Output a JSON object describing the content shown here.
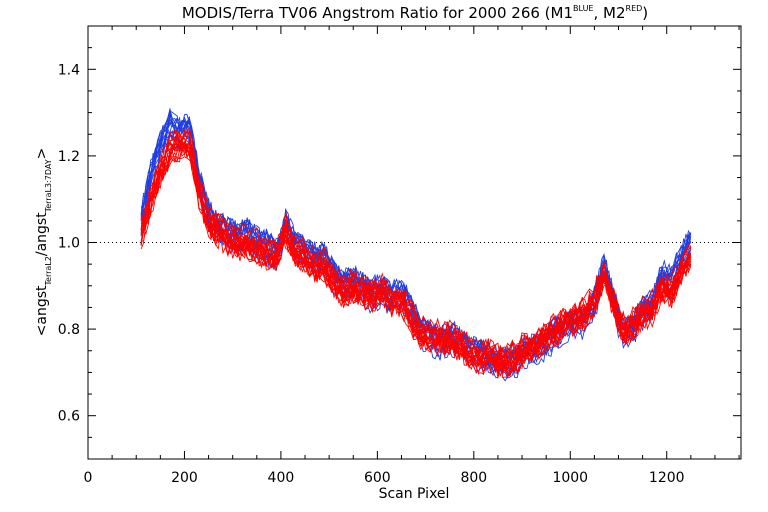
{
  "chart_data": {
    "type": "line",
    "title": {
      "main": "MODIS/Terra TV06 Angstrom Ratio for 2000 266 (M1",
      "sup1": "BLUE",
      "mid": ", M2",
      "sup2": "RED",
      "end": ")"
    },
    "xlabel": "Scan Pixel",
    "ylabel": {
      "pre": "<angst",
      "sub1": "TerraL2",
      "mid": "/angst",
      "sub2": "TerraL3:7DAY",
      "post": ">"
    },
    "xlim": [
      0,
      1354
    ],
    "ylim": [
      0.5,
      1.5
    ],
    "x_ticks": [
      0,
      200,
      400,
      600,
      800,
      1000,
      1200
    ],
    "x_tick_labels": [
      "0",
      "200",
      "400",
      "600",
      "800",
      "1000",
      "1200"
    ],
    "y_ticks": [
      0.6,
      0.8,
      1.0,
      1.2,
      1.4
    ],
    "y_tick_labels": [
      "0.6",
      "0.8",
      "1.0",
      "1.2",
      "1.4"
    ],
    "reference_line": {
      "y": 1.0,
      "style": "dotted"
    },
    "colors": {
      "m1": "#1f3fe0",
      "m2": "#ff0000",
      "axis": "#000000"
    },
    "series": [
      {
        "group": "M1",
        "x": [
          110,
          130,
          150,
          170,
          190,
          210,
          230,
          250,
          270,
          290,
          310,
          330,
          350,
          370,
          390,
          410,
          430,
          450,
          470,
          490,
          510,
          530,
          550,
          570,
          590,
          610,
          630,
          650,
          670,
          690,
          710,
          730,
          750,
          770,
          790,
          810,
          830,
          850,
          870,
          890,
          910,
          930,
          950,
          970,
          990,
          1010,
          1030,
          1050,
          1070,
          1090,
          1110,
          1130,
          1150,
          1170,
          1190,
          1210,
          1230,
          1250
        ],
        "mean": [
          1.05,
          1.15,
          1.22,
          1.27,
          1.25,
          1.26,
          1.14,
          1.06,
          1.03,
          1.02,
          1.01,
          1.02,
          1.0,
          0.99,
          0.97,
          1.04,
          0.99,
          0.98,
          0.96,
          0.96,
          0.92,
          0.9,
          0.91,
          0.89,
          0.88,
          0.89,
          0.87,
          0.88,
          0.84,
          0.79,
          0.78,
          0.77,
          0.78,
          0.77,
          0.75,
          0.74,
          0.73,
          0.72,
          0.72,
          0.73,
          0.75,
          0.75,
          0.77,
          0.79,
          0.8,
          0.81,
          0.82,
          0.86,
          0.94,
          0.86,
          0.79,
          0.8,
          0.84,
          0.85,
          0.92,
          0.91,
          0.96,
          1.0
        ]
      },
      {
        "group": "M2",
        "x": [
          110,
          130,
          150,
          170,
          190,
          210,
          230,
          250,
          270,
          290,
          310,
          330,
          350,
          370,
          390,
          410,
          430,
          450,
          470,
          490,
          510,
          530,
          550,
          570,
          590,
          610,
          630,
          650,
          670,
          690,
          710,
          730,
          750,
          770,
          790,
          810,
          830,
          850,
          870,
          890,
          910,
          930,
          950,
          970,
          990,
          1010,
          1030,
          1050,
          1070,
          1090,
          1110,
          1130,
          1150,
          1170,
          1190,
          1210,
          1230,
          1250
        ],
        "mean": [
          1.02,
          1.1,
          1.17,
          1.22,
          1.23,
          1.23,
          1.12,
          1.05,
          1.03,
          1.01,
          1.0,
          1.0,
          0.99,
          0.98,
          0.97,
          1.03,
          0.98,
          0.97,
          0.95,
          0.95,
          0.91,
          0.89,
          0.9,
          0.89,
          0.88,
          0.89,
          0.87,
          0.87,
          0.83,
          0.79,
          0.79,
          0.78,
          0.78,
          0.77,
          0.75,
          0.74,
          0.74,
          0.73,
          0.73,
          0.74,
          0.76,
          0.77,
          0.79,
          0.8,
          0.82,
          0.83,
          0.84,
          0.87,
          0.93,
          0.86,
          0.8,
          0.81,
          0.84,
          0.85,
          0.9,
          0.89,
          0.94,
          0.97
        ]
      }
    ]
  }
}
